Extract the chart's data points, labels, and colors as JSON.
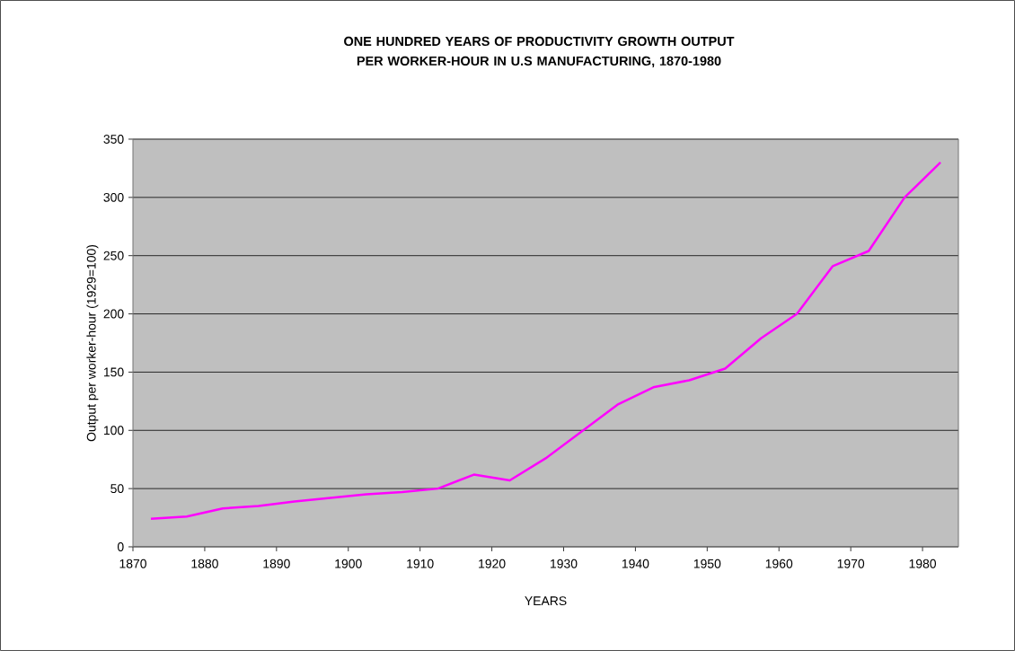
{
  "chart_data": {
    "type": "line",
    "title": "ONE HUNDRED YEARS OF PRODUCTIVITY GROWTH OUTPUT PER WORKER-HOUR IN U.S MANUFACTURING, 1870-1980",
    "xlabel": "YEARS",
    "ylabel": "Output per worker-hour  (1929=100)",
    "x": [
      1872.5,
      1877.5,
      1882.5,
      1887.5,
      1892.5,
      1897.5,
      1902.5,
      1907.5,
      1912.5,
      1917.5,
      1922.5,
      1927.5,
      1932.5,
      1937.5,
      1942.5,
      1947.5,
      1952.5,
      1957.5,
      1962.5,
      1967.5,
      1972.5,
      1977.5,
      1982.5
    ],
    "series": [
      {
        "color": "#ff00ff",
        "values": [
          24,
          26,
          33,
          35,
          39,
          42,
          45,
          47,
          50,
          62,
          57,
          76,
          99,
          122,
          137,
          143,
          153,
          179,
          200,
          241,
          254,
          300,
          330
        ]
      }
    ],
    "xlim": [
      1870,
      1985
    ],
    "ylim": [
      0,
      350
    ],
    "xticks": [
      1870,
      1880,
      1890,
      1900,
      1910,
      1920,
      1930,
      1940,
      1950,
      1960,
      1970,
      1980
    ],
    "yticks": [
      0,
      50,
      100,
      150,
      200,
      250,
      300,
      350
    ],
    "grid": "y",
    "line_style": "solid"
  }
}
